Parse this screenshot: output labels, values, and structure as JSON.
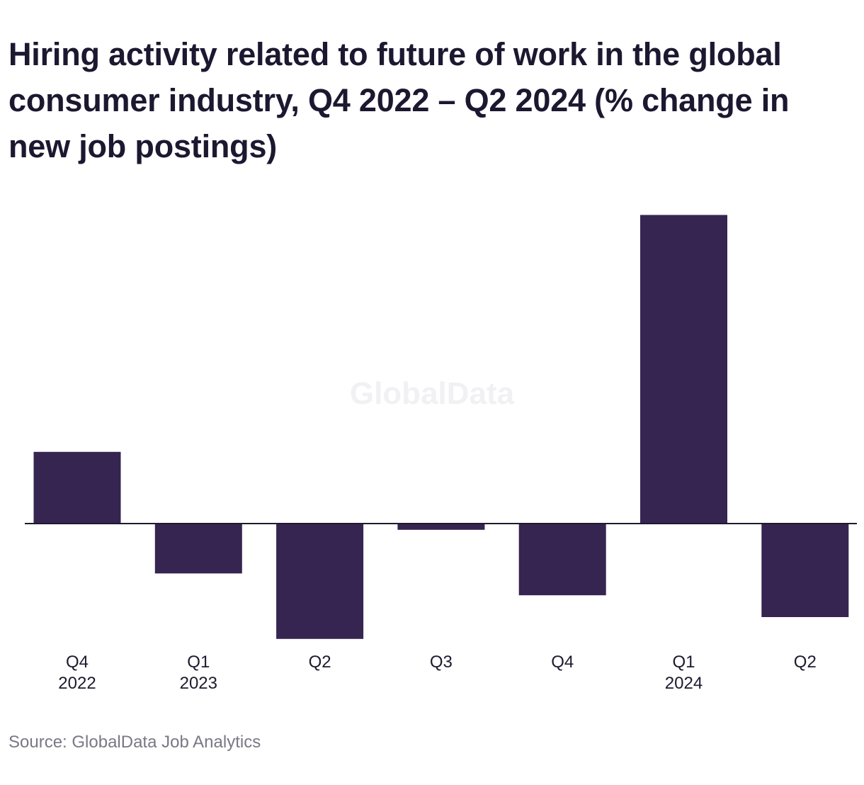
{
  "title": "Hiring activity related to future of work in the global consumer industry, Q4 2022 – Q2 2024 (% change in new job postings)",
  "source": "Source: GlobalData Job Analytics",
  "watermark": "GlobalData",
  "colors": {
    "bar": "#362451",
    "axis": "#1f1a2e",
    "text": "#1c1830",
    "source": "#7a7885"
  },
  "chart_data": {
    "type": "bar",
    "categories": [
      [
        "Q4",
        "2022"
      ],
      [
        "Q1",
        "2023"
      ],
      [
        "Q2"
      ],
      [
        "Q3"
      ],
      [
        "Q4"
      ],
      [
        "Q1",
        "2024"
      ],
      [
        "Q2"
      ]
    ],
    "values": [
      23,
      -16,
      -37,
      -2,
      -23,
      99,
      -30
    ],
    "title": "Hiring activity related to future of work in the global consumer industry, Q4 2022 – Q2 2024 (% change in new job postings)",
    "xlabel": "",
    "ylabel": "",
    "ylim": [
      -40,
      105
    ],
    "grid": false,
    "legend": "none"
  }
}
